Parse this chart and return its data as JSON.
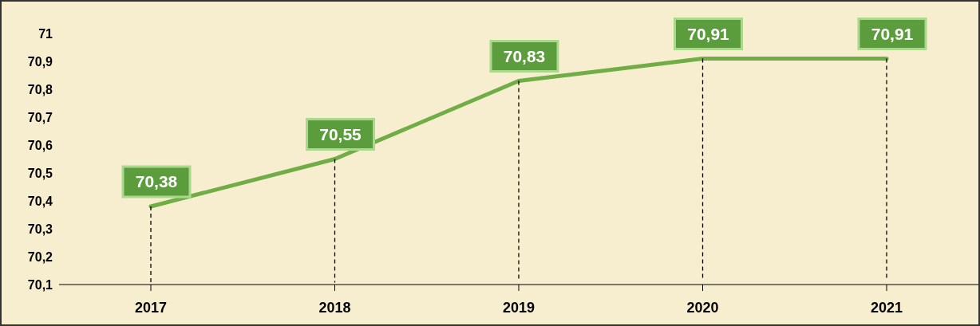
{
  "chart_data": {
    "type": "line",
    "categories": [
      "2017",
      "2018",
      "2019",
      "2020",
      "2021"
    ],
    "series": [
      {
        "color": "#70ad47",
        "values": [
          70.38,
          70.55,
          70.83,
          70.91,
          70.91
        ],
        "value_labels": [
          "70,38",
          "70,55",
          "70,83",
          "70,91",
          "70,91"
        ]
      }
    ],
    "ylim": [
      70.1,
      71
    ],
    "yticks": [
      {
        "value": 70.1,
        "label": "70,1"
      },
      {
        "value": 70.2,
        "label": "70,2"
      },
      {
        "value": 70.3,
        "label": "70,3"
      },
      {
        "value": 70.4,
        "label": "70,4"
      },
      {
        "value": 70.5,
        "label": "70,5"
      },
      {
        "value": 70.6,
        "label": "70,6"
      },
      {
        "value": 70.7,
        "label": "70,7"
      },
      {
        "value": 70.8,
        "label": "70,8"
      },
      {
        "value": 70.9,
        "label": "70,9"
      },
      71
    ],
    "grid": "x",
    "legend": false,
    "marker": "none",
    "line_style": "solid"
  }
}
